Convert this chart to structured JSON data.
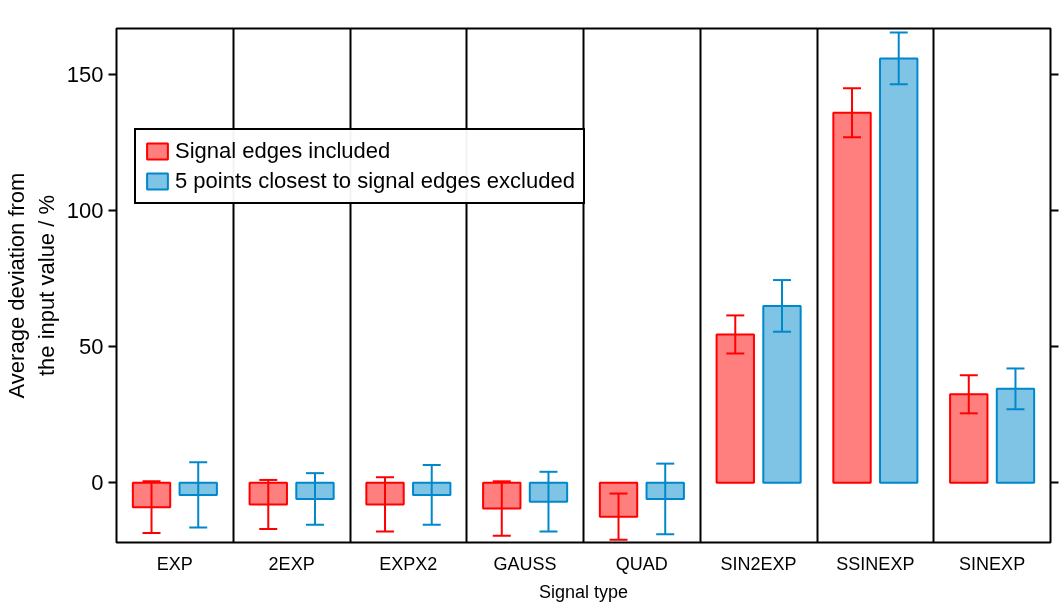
{
  "chart_data": {
    "type": "bar",
    "xlabel": "Signal type",
    "ylabel": "Average deviation from\nthe input value / %",
    "categories": [
      "EXP",
      "2EXP",
      "EXPX2",
      "GAUSS",
      "QUAD",
      "SIN2EXP",
      "SSINEXP",
      "SINEXP"
    ],
    "series": [
      {
        "name": "Signal edges included",
        "color": "#ff0000",
        "values": [
          -9,
          -8,
          -8,
          -9.5,
          -12.5,
          54.5,
          136,
          32.5
        ],
        "errors": [
          9.5,
          9,
          10,
          10,
          8.5,
          7,
          9,
          7
        ]
      },
      {
        "name": "5 points closest to signal edges excluded",
        "color": "#0088cc",
        "values": [
          -4.5,
          -6,
          -4.5,
          -7,
          -6,
          65,
          156,
          34.5
        ],
        "errors": [
          12,
          9.5,
          11,
          11,
          13,
          9.5,
          9.5,
          7.5
        ]
      }
    ],
    "ylim": [
      -22,
      167
    ],
    "yticks": [
      0,
      50,
      100,
      150
    ],
    "grid": "x",
    "legend": "top left"
  }
}
